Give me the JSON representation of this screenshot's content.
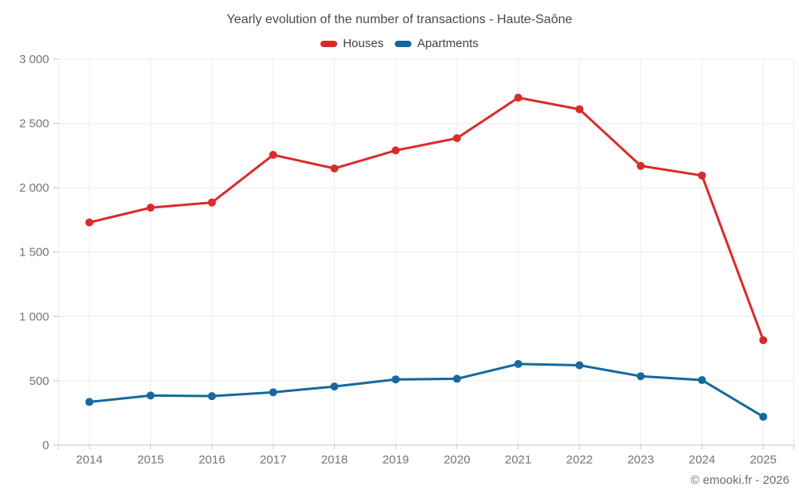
{
  "page": {
    "title": "Yearly evolution of the number of transactions - Haute-Saône",
    "credit": "© emooki.fr - 2026"
  },
  "legend": {
    "items": [
      {
        "label": "Houses",
        "color": "#d92b2b"
      },
      {
        "label": "Apartments",
        "color": "#16699e"
      }
    ]
  },
  "chart_data": {
    "type": "line",
    "title": "Yearly evolution of the number of transactions - Haute-Saône",
    "categories": [
      "2014",
      "2015",
      "2016",
      "2017",
      "2018",
      "2019",
      "2020",
      "2021",
      "2022",
      "2023",
      "2024",
      "2025"
    ],
    "series": [
      {
        "name": "Houses",
        "color": "#d92b2b",
        "values": [
          1730,
          1845,
          1885,
          2255,
          2150,
          2290,
          2385,
          2700,
          2610,
          2170,
          2095,
          815
        ]
      },
      {
        "name": "Apartments",
        "color": "#16699e",
        "values": [
          335,
          385,
          380,
          410,
          455,
          510,
          515,
          630,
          620,
          535,
          505,
          220
        ]
      }
    ],
    "xlabel": "",
    "ylabel": "",
    "ylim": [
      0,
      3000
    ],
    "ytick_interval": 500,
    "yticks": [
      0,
      500,
      1000,
      1500,
      2000,
      2500,
      3000
    ],
    "ytick_labels": [
      "0",
      "500",
      "1 000",
      "1 500",
      "2 000",
      "2 500",
      "3 000"
    ],
    "grid": true,
    "legend_position": "top"
  },
  "colors": {
    "background": "#ffffff",
    "grid": "#ececec",
    "axis": "#cccccc",
    "tick": "#c6c6c6",
    "axis_label": "#757575",
    "marker_stroke": "#ffffff"
  }
}
